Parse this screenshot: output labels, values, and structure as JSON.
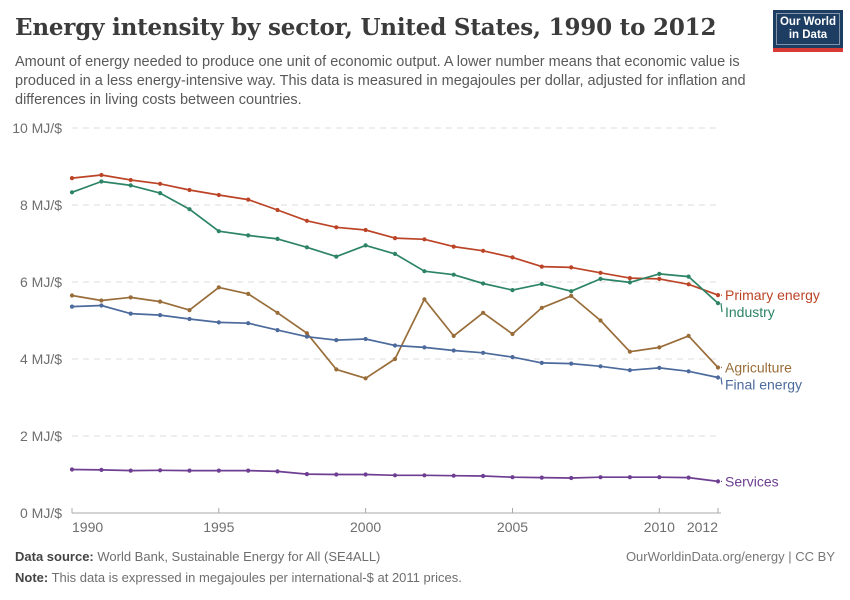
{
  "header": {
    "title": "Energy intensity by sector, United States, 1990 to 2012",
    "subtitle": "Amount of energy needed to produce one unit of economic output. A lower number means that economic value is produced in a less energy-intensive way. This data is measured in megajoules per dollar, adjusted for inflation and differences in living costs between countries.",
    "logo": {
      "line1": "Our World",
      "line2": "in Data",
      "bg_color": "#1d3d63",
      "stripe_color": "#d93a36"
    }
  },
  "chart_data": {
    "type": "line",
    "unit": "MJ/$",
    "x": [
      1990,
      1991,
      1992,
      1993,
      1994,
      1995,
      1996,
      1997,
      1998,
      1999,
      2000,
      2001,
      2002,
      2003,
      2004,
      2005,
      2006,
      2007,
      2008,
      2009,
      2010,
      2011,
      2012
    ],
    "x_ticks": [
      1990,
      1995,
      2000,
      2005,
      2010,
      2012
    ],
    "ylim": [
      0,
      10
    ],
    "y_ticks": [
      0,
      2,
      4,
      6,
      8,
      10
    ],
    "y_tick_labels": [
      "0 MJ/$",
      "2 MJ/$",
      "4 MJ/$",
      "6 MJ/$",
      "8 MJ/$",
      "10 MJ/$"
    ],
    "grid": "dashed-horizontal",
    "legend_position": "end-of-line-labels",
    "series": [
      {
        "name": "Primary energy",
        "color": "#bc4426",
        "values": [
          8.7,
          8.78,
          8.65,
          8.55,
          8.39,
          8.26,
          8.14,
          7.87,
          7.59,
          7.42,
          7.35,
          7.14,
          7.11,
          6.92,
          6.81,
          6.64,
          6.4,
          6.38,
          6.24,
          6.1,
          6.08,
          5.94,
          5.66
        ]
      },
      {
        "name": "Industry",
        "color": "#2c8465",
        "values": [
          8.33,
          8.61,
          8.51,
          8.31,
          7.89,
          7.32,
          7.21,
          7.12,
          6.9,
          6.66,
          6.95,
          6.73,
          6.28,
          6.19,
          5.96,
          5.79,
          5.95,
          5.76,
          6.08,
          5.99,
          6.21,
          6.14,
          5.45
        ]
      },
      {
        "name": "Agriculture",
        "color": "#996d39",
        "values": [
          5.65,
          5.52,
          5.6,
          5.49,
          5.27,
          5.86,
          5.69,
          5.2,
          4.67,
          3.73,
          3.5,
          4.0,
          5.55,
          4.6,
          5.2,
          4.65,
          5.33,
          5.64,
          5.0,
          4.19,
          4.3,
          4.6,
          3.78
        ]
      },
      {
        "name": "Final energy",
        "color": "#4c6a9c",
        "values": [
          5.36,
          5.39,
          5.18,
          5.14,
          5.04,
          4.95,
          4.93,
          4.75,
          4.58,
          4.49,
          4.52,
          4.35,
          4.3,
          4.22,
          4.16,
          4.05,
          3.9,
          3.88,
          3.81,
          3.71,
          3.77,
          3.68,
          3.52
        ]
      },
      {
        "name": "Services",
        "color": "#6d3e91",
        "values": [
          1.13,
          1.12,
          1.1,
          1.11,
          1.1,
          1.1,
          1.1,
          1.08,
          1.01,
          1.0,
          1.0,
          0.98,
          0.98,
          0.97,
          0.96,
          0.93,
          0.92,
          0.91,
          0.93,
          0.93,
          0.93,
          0.92,
          0.82
        ]
      }
    ]
  },
  "footer": {
    "datasource_label": "Data source:",
    "datasource_text": " World Bank, Sustainable Energy for All (SE4ALL)",
    "note_label": "Note:",
    "note_text": " This data is expressed in megajoules per international-$ at 2011 prices.",
    "link_text": "OurWorldinData.org/energy | CC BY"
  }
}
